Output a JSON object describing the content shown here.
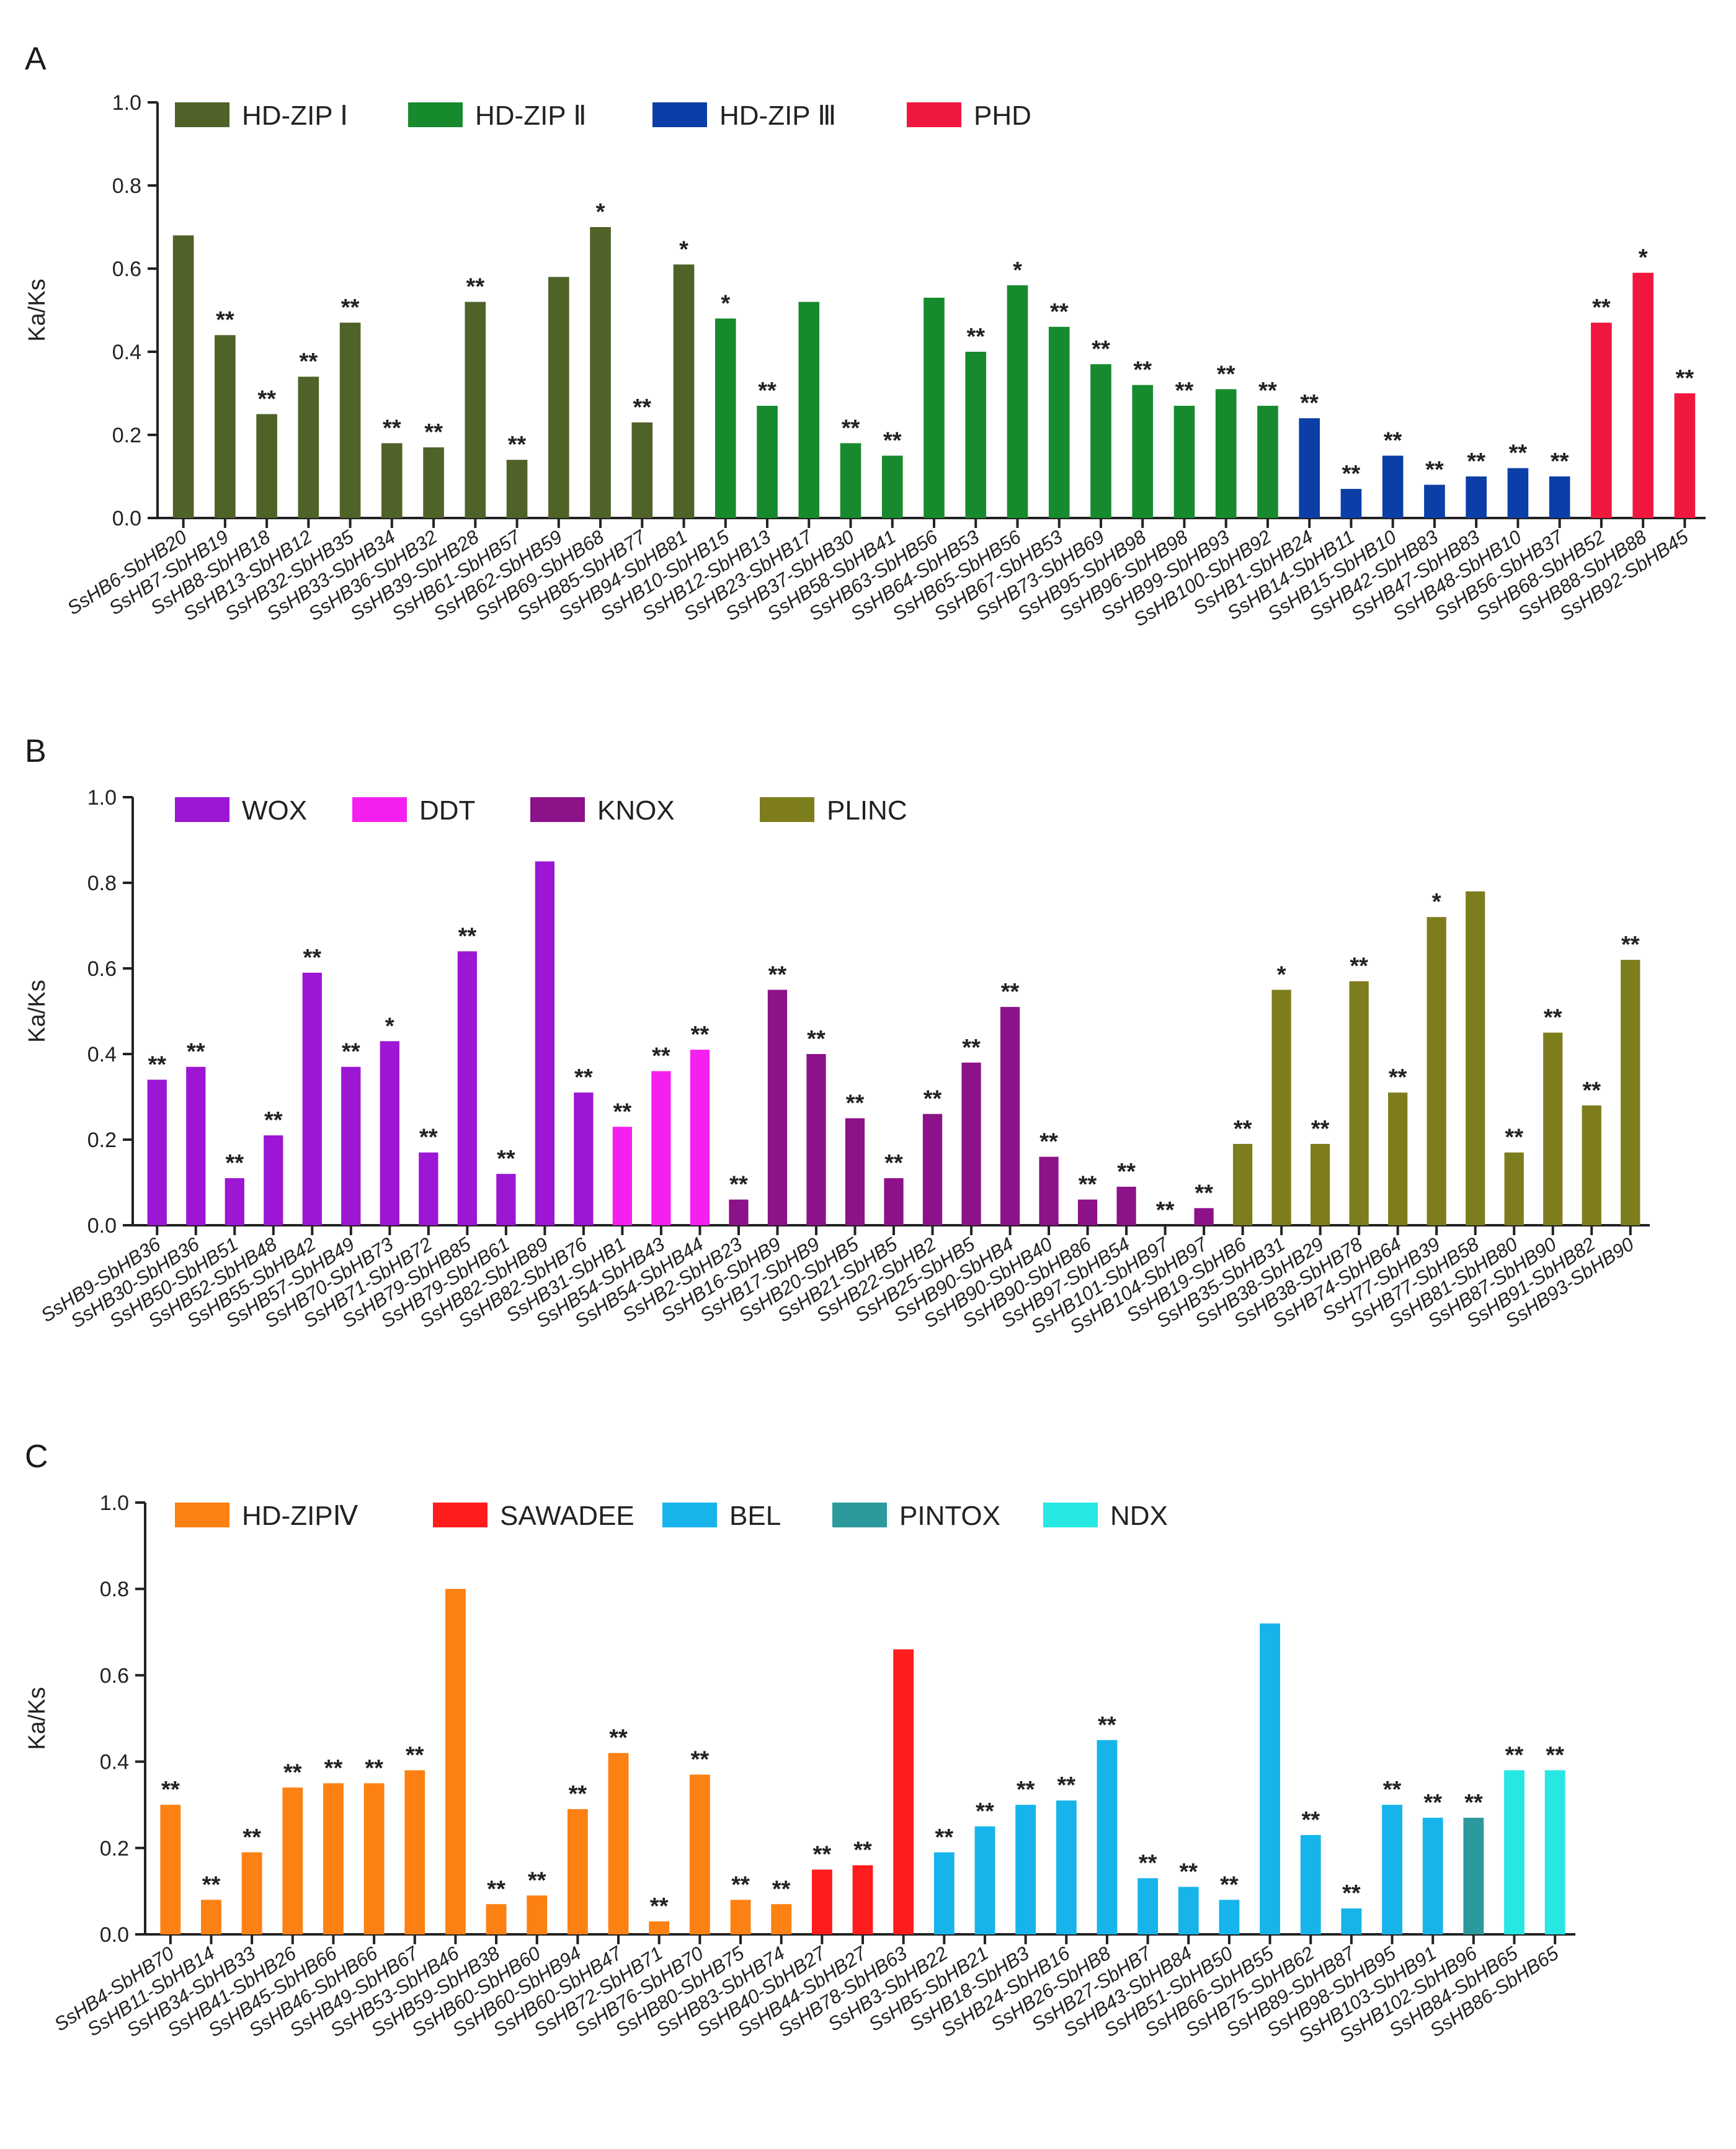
{
  "chart_data": [
    {
      "panel": "A",
      "type": "bar",
      "ylabel": "Ka/Ks",
      "ylim": [
        0,
        1.0
      ],
      "yticks": [
        "0.0",
        "0.2",
        "0.4",
        "0.6",
        "0.8",
        "1.0"
      ],
      "legend": [
        {
          "name": "HD-ZIP Ⅰ",
          "color": "#4f6228"
        },
        {
          "name": "HD-ZIP Ⅱ",
          "color": "#188a2e"
        },
        {
          "name": "HD-ZIP Ⅲ",
          "color": "#0b3ea6"
        },
        {
          "name": "PHD",
          "color": "#f0173f"
        }
      ],
      "categories": [
        "SsHB6-SbHB20",
        "SsHB7-SbHB19",
        "SsHB8-SbHB18",
        "SsHB13-SbHB12",
        "SsHB32-SbHB35",
        "SsHB33-SbHB34",
        "SsHB36-SbHB32",
        "SsHB39-SbHB28",
        "SsHB61-SbHB57",
        "SsHB62-SbHB59",
        "SsHB69-SbHB68",
        "SsHB85-SbHB77",
        "SsHB94-SbHB81",
        "SsHB10-SbHB15",
        "SsHB12-SbHB13",
        "SsHB23-SbHB17",
        "SsHB37-SbHB30",
        "SsHB58-SbHB41",
        "SsHB63-SbHB56",
        "SsHB64-SbHB53",
        "SsHB65-SbHB56",
        "SsHB67-SbHB53",
        "SsHB73-SbHB69",
        "SsHB95-SbHB98",
        "SsHB96-SbHB98",
        "SsHB99-SbHB93",
        "SsHB100-SbHB92",
        "SsHB1-SbHB24",
        "SsHB14-SbHB11",
        "SsHB15-SbHB10",
        "SsHB42-SbHB83",
        "SsHB47-SbHB83",
        "SsHB48-SbHB10",
        "SsHB56-SbHB37",
        "SsHB68-SbHB52",
        "SsHB88-SbHB88",
        "SsHB92-SbHB45"
      ],
      "values": [
        0.68,
        0.44,
        0.25,
        0.34,
        0.47,
        0.18,
        0.17,
        0.52,
        0.14,
        0.58,
        0.7,
        0.23,
        0.61,
        0.48,
        0.27,
        0.52,
        0.18,
        0.15,
        0.53,
        0.4,
        0.56,
        0.46,
        0.37,
        0.32,
        0.27,
        0.31,
        0.27,
        0.24,
        0.07,
        0.15,
        0.08,
        0.1,
        0.12,
        0.1,
        0.47,
        0.59,
        0.3
      ],
      "groups": [
        0,
        0,
        0,
        0,
        0,
        0,
        0,
        0,
        0,
        0,
        0,
        0,
        0,
        1,
        1,
        1,
        1,
        1,
        1,
        1,
        1,
        1,
        1,
        1,
        1,
        1,
        1,
        2,
        2,
        2,
        2,
        2,
        2,
        2,
        3,
        3,
        3
      ],
      "significance": [
        "",
        "**",
        "**",
        "**",
        "**",
        "**",
        "**",
        "**",
        "**",
        "",
        "*",
        "**",
        "*",
        "*",
        "**",
        "",
        "**",
        "**",
        "",
        "**",
        "*",
        "**",
        "**",
        "**",
        "**",
        "**",
        "**",
        "**",
        "**",
        "**",
        "**",
        "**",
        "**",
        "**",
        "**",
        "*",
        "**"
      ]
    },
    {
      "panel": "B",
      "type": "bar",
      "ylabel": "Ka/Ks",
      "ylim": [
        0,
        1.0
      ],
      "yticks": [
        "0.0",
        "0.2",
        "0.4",
        "0.6",
        "0.8",
        "1.0"
      ],
      "legend": [
        {
          "name": "WOX",
          "color": "#9c16d3"
        },
        {
          "name": "DDT",
          "color": "#f51ff0"
        },
        {
          "name": "KNOX",
          "color": "#8b1288"
        },
        {
          "name": "PLINC",
          "color": "#7d7d1d"
        }
      ],
      "categories": [
        "SsHB9-SbHB36",
        "SsHB30-SbHB36",
        "SsHB50-SbHB51",
        "SsHB52-SbHB48",
        "SsHB55-SbHB42",
        "SsHB57-SbHB49",
        "SsHB70-SbHB73",
        "SsHB71-SbHB72",
        "SsHB79-SbHB85",
        "SsHB79-SbHB61",
        "SsHB82-SbHB89",
        "SsHB82-SbHB76",
        "SsHB31-SbHB1",
        "SsHB54-SbHB43",
        "SsHB54-SbHB44",
        "SsHB2-SbHB23",
        "SsHB16-SbHB9",
        "SsHB17-SbHB9",
        "SsHB20-SbHB5",
        "SsHB21-SbHB5",
        "SsHB22-SbHB2",
        "SsHB25-SbHB5",
        "SsHB90-SbHB4",
        "SsHB90-SbHB40",
        "SsHB90-SbHB86",
        "SsHB97-SbHB54",
        "SsHB101-SbHB97",
        "SsHB104-SbHB97",
        "SsHB19-SbHB6",
        "SsHB35-SbHB31",
        "SsHB38-SbHB29",
        "SsHB38-SbHB78",
        "SsHB74-SbHB64",
        "SsH77-SbHB39",
        "SsHB77-SbHB58",
        "SsHB81-SbHB80",
        "SsHB87-SbHB90",
        "SsHB91-SbHB82",
        "SsHB93-SbHB90"
      ],
      "values": [
        0.34,
        0.37,
        0.11,
        0.21,
        0.59,
        0.37,
        0.43,
        0.17,
        0.64,
        0.12,
        0.85,
        0.31,
        0.23,
        0.36,
        0.41,
        0.06,
        0.55,
        0.4,
        0.25,
        0.11,
        0.26,
        0.38,
        0.51,
        0.16,
        0.06,
        0.09,
        0.0,
        0.04,
        0.19,
        0.55,
        0.19,
        0.57,
        0.31,
        0.72,
        0.78,
        0.17,
        0.45,
        0.28,
        0.62
      ],
      "groups": [
        0,
        0,
        0,
        0,
        0,
        0,
        0,
        0,
        0,
        0,
        0,
        0,
        1,
        1,
        1,
        2,
        2,
        2,
        2,
        2,
        2,
        2,
        2,
        2,
        2,
        2,
        2,
        2,
        3,
        3,
        3,
        3,
        3,
        3,
        3,
        3,
        3,
        3,
        3
      ],
      "significance": [
        "**",
        "**",
        "**",
        "**",
        "**",
        "**",
        "*",
        "**",
        "**",
        "**",
        "",
        "**",
        "**",
        "**",
        "**",
        "**",
        "**",
        "**",
        "**",
        "**",
        "**",
        "**",
        "**",
        "**",
        "**",
        "**",
        "**",
        "**",
        "**",
        "*",
        "**",
        "**",
        "**",
        "*",
        "",
        "**",
        "**",
        "**",
        "**"
      ]
    },
    {
      "panel": "C",
      "type": "bar",
      "ylabel": "Ka/Ks",
      "ylim": [
        0,
        1.0
      ],
      "yticks": [
        "0.0",
        "0.2",
        "0.4",
        "0.6",
        "0.8",
        "1.0"
      ],
      "legend": [
        {
          "name": "HD-ZIPⅣ",
          "color": "#fd8012"
        },
        {
          "name": "SAWADEE",
          "color": "#fe1c1c"
        },
        {
          "name": "BEL",
          "color": "#17b4ec"
        },
        {
          "name": "PINTOX",
          "color": "#2c999c"
        },
        {
          "name": "NDX",
          "color": "#27e7e2"
        }
      ],
      "categories": [
        "SsHB4-SbHB70",
        "SsHB11-SbHB14",
        "SsHB34-SbHB33",
        "SsHB41-SbHB26",
        "SsHB45-SbHB66",
        "SsHB46-SbHB66",
        "SsHB49-SbHB67",
        "SsHB53-SbHB46",
        "SsHB59-SbHB38",
        "SsHB60-SbHB60",
        "SsHB60-SbHB94",
        "SsHB60-SbHB47",
        "SsHB72-SbHB71",
        "SsHB76-SbHB70",
        "SsHB80-SbHB75",
        "SsHB83-SbHB74",
        "SsHB40-SbHB27",
        "SsHB44-SbHB27",
        "SsHB78-SbHB63",
        "SsHB3-SbHB22",
        "SsHB5-SbHB21",
        "SsHB18-SbHB3",
        "SsHB24-SbHB16",
        "SsHB26-SbHB8",
        "SsHB27-SbHB7",
        "SsHB43-SbHB84",
        "SsHB51-SbHB50",
        "SsHB66-SbHB55",
        "SsHB75-SbHB62",
        "SsHB89-SbHB87",
        "SsHB98-SbHB95",
        "SsHB103-SbHB91",
        "SsHB102-SbHB96",
        "SsHB84-SbHB65",
        "SsHB86-SbHB65"
      ],
      "values": [
        0.3,
        0.08,
        0.19,
        0.34,
        0.35,
        0.35,
        0.38,
        0.8,
        0.07,
        0.09,
        0.29,
        0.42,
        0.03,
        0.37,
        0.08,
        0.07,
        0.15,
        0.16,
        0.66,
        0.19,
        0.25,
        0.3,
        0.31,
        0.45,
        0.13,
        0.11,
        0.08,
        0.72,
        0.23,
        0.06,
        0.3,
        0.27,
        0.27,
        0.38,
        0.38
      ],
      "groups": [
        0,
        0,
        0,
        0,
        0,
        0,
        0,
        0,
        0,
        0,
        0,
        0,
        0,
        0,
        0,
        0,
        1,
        1,
        1,
        2,
        2,
        2,
        2,
        2,
        2,
        2,
        2,
        2,
        2,
        2,
        2,
        2,
        3,
        4,
        4
      ],
      "significance": [
        "**",
        "**",
        "**",
        "**",
        "**",
        "**",
        "**",
        "",
        "**",
        "**",
        "**",
        "**",
        "**",
        "**",
        "**",
        "**",
        "**",
        "**",
        "",
        "**",
        "**",
        "**",
        "**",
        "**",
        "**",
        "**",
        "**",
        "",
        "**",
        "**",
        "**",
        "**",
        "**",
        "**",
        "**"
      ]
    }
  ]
}
